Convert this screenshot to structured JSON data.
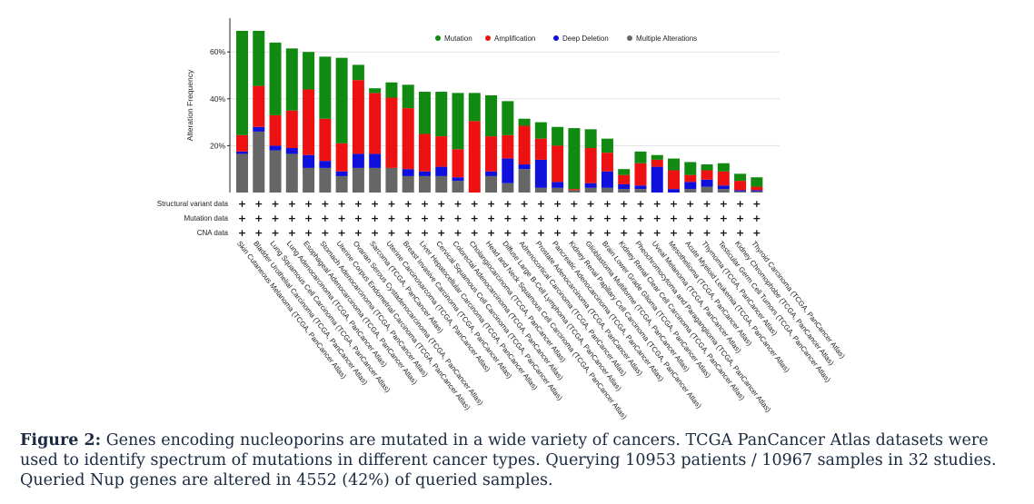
{
  "chart_data": {
    "type": "bar",
    "stacked": true,
    "ylabel": "Alteration Frequency",
    "yticks": [
      "20%",
      "40%",
      "60%"
    ],
    "ylim": [
      0,
      72
    ],
    "grid": true,
    "legend_position": "top",
    "legend": [
      {
        "name": "Mutation",
        "color": "#108a10"
      },
      {
        "name": "Amplification",
        "color": "#ee1111"
      },
      {
        "name": "Deep Deletion",
        "color": "#1010dd"
      },
      {
        "name": "Multiple Alterations",
        "color": "#666666"
      }
    ],
    "categories": [
      "Skin Cutaneous Melanoma (TCGA, PanCancer Atlas)",
      "Bladder Urothelial Carcinoma (TCGA, PanCancer Atlas)",
      "Lung Squamous Cell Carcinoma (TCGA, PanCancer Atlas)",
      "Lung Adenocarcinoma (TCGA, PanCancer Atlas)",
      "Esophageal Adenocarcinoma (TCGA, PanCancer Atlas)",
      "Stomach Adenocarcinoma (TCGA, PanCancer Atlas)",
      "Uterine Corpus Endometrial Carcinoma (TCGA, PanCancer Atlas)",
      "Ovarian Serous Cystadenocarcinoma (TCGA, PanCancer Atlas)",
      "Sarcoma (TCGA, PanCancer Atlas)",
      "Uterine Carcinosarcoma (TCGA, PanCancer Atlas)",
      "Breast Invasive Carcinoma (TCGA, PanCancer Atlas)",
      "Liver Hepatocellular Carcinoma (TCGA, PanCancer Atlas)",
      "Cervical Squamous Cell Carcinoma (TCGA, PanCancer Atlas)",
      "Colorectal Adenocarcinoma (TCGA, PanCancer Atlas)",
      "Cholangiocarcinoma (TCGA, PanCancer Atlas)",
      "Head and Neck Squamous Cell Carcinoma (TCGA, PanCancer Atlas)",
      "Diffuse Large B-Cell Lymphoma (TCGA, PanCancer Atlas)",
      "Adrenocortical Carcinoma (TCGA, PanCancer Atlas)",
      "Prostate Adenocarcinoma (TCGA, PanCancer Atlas)",
      "Pancreatic Adenocarcinoma (TCGA, PanCancer Atlas)",
      "Kidney Renal Papillary Cell Carcinoma (TCGA, PanCancer Atlas)",
      "Glioblastoma Multiforme (TCGA, PanCancer Atlas)",
      "Brain Lower Grade Glioma (TCGA, PanCancer Atlas)",
      "Kidney Renal Clear Cell Carcinoma (TCGA, PanCancer Atlas)",
      "Pheochromocytoma and Paraganglioma (TCGA, PanCancer Atlas)",
      "Uveal Melanoma (TCGA, PanCancer Atlas)",
      "Mesothelioma (TCGA, PanCancer Atlas)",
      "Acute Myeloid Leukemia (TCGA, PanCancer Atlas)",
      "Thymoma (TCGA, PanCancer Atlas)",
      "Testicular Germ Cell Tumors (TCGA, PanCancer Atlas)",
      "Kidney Chromophobe (TCGA, PanCancer Atlas)",
      "Thyroid Carcinoma (TCGA, PanCancer Atlas)"
    ],
    "series": [
      {
        "name": "Multiple Alterations",
        "color": "#666666",
        "values": [
          16.5,
          26,
          18,
          16.5,
          10.5,
          10.5,
          7,
          10.5,
          10.5,
          10.5,
          7,
          7,
          7,
          5,
          0,
          7,
          4,
          10,
          2,
          2,
          1,
          2,
          2,
          1.5,
          1.5,
          0,
          0,
          1.5,
          2.5,
          1.5,
          0.5,
          0.5
        ]
      },
      {
        "name": "Deep Deletion",
        "color": "#1010dd",
        "values": [
          1,
          2,
          2,
          2.5,
          5.5,
          3,
          2,
          6,
          6,
          0,
          3,
          2,
          4,
          1.5,
          0,
          2,
          10.5,
          2,
          12,
          2.5,
          0,
          2,
          7,
          2,
          1.5,
          11,
          1.5,
          3,
          3,
          1.5,
          0.5,
          0.5
        ]
      },
      {
        "name": "Amplification",
        "color": "#ee1111",
        "values": [
          7,
          17.5,
          13,
          16,
          28,
          18,
          12,
          31.5,
          26,
          30,
          26,
          16,
          13,
          12,
          30.5,
          15,
          10,
          16.5,
          9,
          15.5,
          0.5,
          15,
          8,
          4,
          9.5,
          3,
          8,
          3,
          4,
          6,
          4,
          1.5
        ]
      },
      {
        "name": "Mutation",
        "color": "#108a10",
        "values": [
          44.5,
          23.5,
          31,
          26.5,
          16,
          26.5,
          36.5,
          6.5,
          2,
          6.5,
          10,
          18,
          19,
          24,
          12,
          17.5,
          14.5,
          3,
          7,
          8,
          26,
          8,
          6,
          2.5,
          5,
          2,
          5,
          5.5,
          2.5,
          3.5,
          3,
          4
        ]
      }
    ],
    "row_labels": [
      "Structural variant data",
      "Mutation data",
      "CNA data"
    ],
    "row_marker": "+"
  },
  "caption": {
    "label": "Figure 2:",
    "text": "Genes encoding nucleoporins are mutated in a wide variety of cancers. TCGA PanCancer Atlas datasets were used to identify spectrum of mutations in different cancer types. Querying 10953 patients / 10967 samples in 32 studies.  Queried Nup genes are altered in 4552 (42%) of queried samples."
  }
}
